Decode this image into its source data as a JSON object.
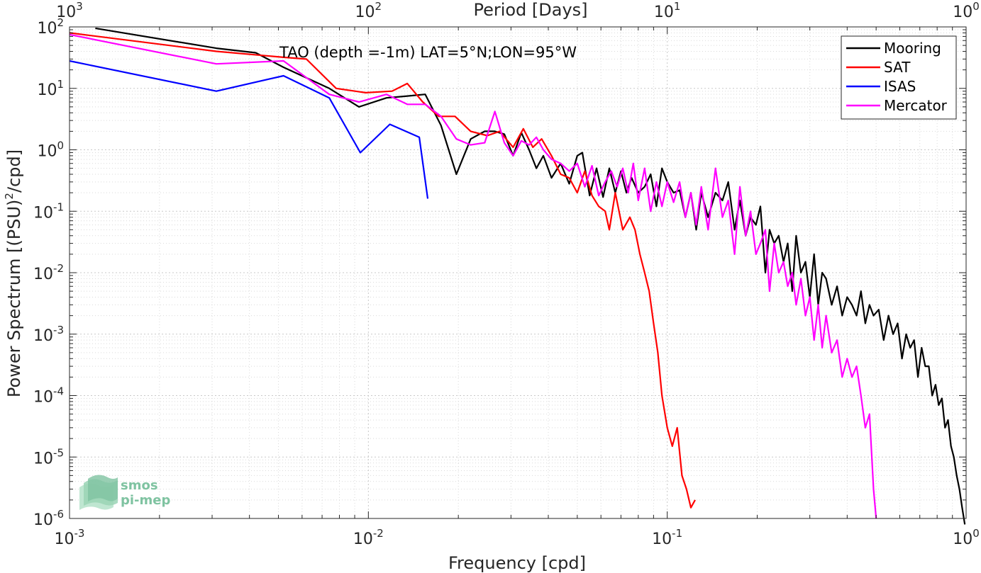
{
  "chart_data": {
    "type": "line",
    "title": "TAO (depth =-1m) LAT=5°N;LON=95°W",
    "xlabel": "Frequency [cpd]",
    "ylabel": "Power Spectrum [(PSU)²/cpd]",
    "ylabel_parts": {
      "before": "Power Spectrum [(PSU)",
      "sup": "2",
      "after": "/cpd]"
    },
    "top_xlabel": "Period [Days]",
    "xscale": "log",
    "yscale": "log",
    "xlim": [
      0.001,
      1
    ],
    "ylim": [
      1e-06,
      100
    ],
    "grid": true,
    "minor_grid": true,
    "legend_position": "top-right",
    "x_ticks": [
      {
        "value": 0.001,
        "base": "10",
        "exp": "-3"
      },
      {
        "value": 0.01,
        "base": "10",
        "exp": "-2"
      },
      {
        "value": 0.1,
        "base": "10",
        "exp": "-1"
      },
      {
        "value": 1,
        "base": "10",
        "exp": "0"
      }
    ],
    "top_x_ticks": [
      {
        "value": 0.001,
        "base": "10",
        "exp": "3"
      },
      {
        "value": 0.01,
        "base": "10",
        "exp": "2"
      },
      {
        "value": 0.1,
        "base": "10",
        "exp": "1"
      },
      {
        "value": 1,
        "base": "10",
        "exp": "0"
      }
    ],
    "y_ticks": [
      {
        "value": 100,
        "base": "10",
        "exp": "2"
      },
      {
        "value": 10,
        "base": "10",
        "exp": "1"
      },
      {
        "value": 1,
        "base": "10",
        "exp": "0"
      },
      {
        "value": 0.1,
        "base": "10",
        "exp": "-1"
      },
      {
        "value": 0.01,
        "base": "10",
        "exp": "-2"
      },
      {
        "value": 0.001,
        "base": "10",
        "exp": "-3"
      },
      {
        "value": 0.0001,
        "base": "10",
        "exp": "-4"
      },
      {
        "value": 1e-05,
        "base": "10",
        "exp": "-5"
      },
      {
        "value": 1e-06,
        "base": "10",
        "exp": "-6"
      }
    ],
    "series": [
      {
        "name": "Mooring",
        "color": "#000000",
        "x": [
          0.00122,
          0.0031,
          0.0042,
          0.0052,
          0.0074,
          0.0093,
          0.0115,
          0.0135,
          0.0155,
          0.0175,
          0.0197,
          0.022,
          0.0245,
          0.0265,
          0.0285,
          0.0305,
          0.0325,
          0.0345,
          0.0365,
          0.0385,
          0.041,
          0.044,
          0.047,
          0.05,
          0.052,
          0.055,
          0.058,
          0.061,
          0.064,
          0.067,
          0.07,
          0.073,
          0.076,
          0.08,
          0.084,
          0.088,
          0.092,
          0.096,
          0.1,
          0.105,
          0.11,
          0.115,
          0.12,
          0.125,
          0.13,
          0.137,
          0.145,
          0.153,
          0.16,
          0.168,
          0.175,
          0.183,
          0.19,
          0.198,
          0.205,
          0.213,
          0.22,
          0.228,
          0.236,
          0.245,
          0.253,
          0.262,
          0.27,
          0.28,
          0.29,
          0.3,
          0.31,
          0.32,
          0.33,
          0.34,
          0.355,
          0.37,
          0.385,
          0.4,
          0.415,
          0.43,
          0.445,
          0.46,
          0.475,
          0.49,
          0.51,
          0.53,
          0.55,
          0.57,
          0.59,
          0.61,
          0.63,
          0.65,
          0.67,
          0.69,
          0.71,
          0.73,
          0.75,
          0.77,
          0.79,
          0.81,
          0.83,
          0.85,
          0.87,
          0.89,
          0.91,
          0.93,
          0.95,
          0.97,
          0.99
        ],
        "y": [
          95,
          45,
          38,
          22,
          10,
          5,
          7,
          7.5,
          8,
          2.5,
          0.4,
          1.5,
          2,
          2,
          1.8,
          0.8,
          1.9,
          1,
          0.5,
          0.8,
          0.35,
          0.6,
          0.28,
          0.8,
          0.9,
          0.18,
          0.5,
          0.17,
          0.5,
          0.2,
          0.45,
          0.2,
          0.35,
          0.2,
          0.25,
          0.4,
          0.12,
          0.5,
          0.3,
          0.2,
          0.22,
          0.08,
          0.2,
          0.05,
          0.2,
          0.08,
          0.2,
          0.15,
          0.3,
          0.05,
          0.15,
          0.04,
          0.08,
          0.06,
          0.12,
          0.01,
          0.05,
          0.03,
          0.04,
          0.015,
          0.03,
          0.005,
          0.04,
          0.01,
          0.015,
          0.004,
          0.02,
          0.003,
          0.01,
          0.008,
          0.003,
          0.006,
          0.002,
          0.004,
          0.003,
          0.002,
          0.005,
          0.0015,
          0.003,
          0.002,
          0.0025,
          0.0008,
          0.002,
          0.001,
          0.0015,
          0.0004,
          0.001,
          0.0006,
          0.0008,
          0.0002,
          0.0006,
          0.0003,
          0.0003,
          0.0001,
          0.00015,
          7e-05,
          9e-05,
          3e-05,
          4e-05,
          1.5e-05,
          1e-05,
          5e-06,
          3e-06,
          1.5e-06,
          8e-07
        ]
      },
      {
        "name": "SAT",
        "color": "#ff0000",
        "x": [
          0.001,
          0.0031,
          0.0052,
          0.0062,
          0.0078,
          0.0098,
          0.012,
          0.0135,
          0.0152,
          0.0172,
          0.0195,
          0.022,
          0.025,
          0.0275,
          0.0305,
          0.033,
          0.0355,
          0.038,
          0.041,
          0.044,
          0.047,
          0.05,
          0.053,
          0.056,
          0.059,
          0.062,
          0.064,
          0.067,
          0.071,
          0.075,
          0.078,
          0.081,
          0.084,
          0.087,
          0.09,
          0.093,
          0.096,
          0.1,
          0.104,
          0.108,
          0.112,
          0.116,
          0.12,
          0.124
        ],
        "y": [
          80,
          40,
          32,
          30,
          10,
          8.5,
          9,
          12,
          6,
          3.5,
          3.5,
          2,
          1.7,
          2,
          1.1,
          2.2,
          1.1,
          1.5,
          0.8,
          0.4,
          0.35,
          0.2,
          0.45,
          0.18,
          0.12,
          0.1,
          0.05,
          0.2,
          0.05,
          0.08,
          0.05,
          0.02,
          0.01,
          0.005,
          0.0015,
          0.0005,
          0.0001,
          3e-05,
          1.5e-05,
          3e-05,
          5e-06,
          3e-06,
          1.5e-06,
          2e-06
        ]
      },
      {
        "name": "ISAS",
        "color": "#0000ff",
        "x": [
          0.001,
          0.0031,
          0.0052,
          0.0074,
          0.0094,
          0.0118,
          0.0148,
          0.0158
        ],
        "y": [
          28,
          9,
          16,
          7,
          0.9,
          2.6,
          1.6,
          0.16
        ]
      },
      {
        "name": "Mercator",
        "color": "#ff00ff",
        "x": [
          0.001,
          0.0031,
          0.0052,
          0.0074,
          0.0093,
          0.0115,
          0.0135,
          0.0155,
          0.0175,
          0.0197,
          0.022,
          0.0245,
          0.0265,
          0.0285,
          0.0305,
          0.0325,
          0.0345,
          0.0365,
          0.0385,
          0.041,
          0.044,
          0.047,
          0.05,
          0.053,
          0.056,
          0.059,
          0.062,
          0.065,
          0.068,
          0.071,
          0.074,
          0.077,
          0.08,
          0.084,
          0.088,
          0.092,
          0.096,
          0.1,
          0.105,
          0.11,
          0.115,
          0.12,
          0.125,
          0.13,
          0.137,
          0.145,
          0.153,
          0.16,
          0.168,
          0.175,
          0.183,
          0.19,
          0.198,
          0.205,
          0.213,
          0.22,
          0.228,
          0.236,
          0.245,
          0.253,
          0.262,
          0.27,
          0.28,
          0.29,
          0.3,
          0.31,
          0.32,
          0.33,
          0.34,
          0.355,
          0.37,
          0.385,
          0.4,
          0.415,
          0.43,
          0.445,
          0.46,
          0.475,
          0.49,
          0.5
        ],
        "y": [
          75,
          25,
          28,
          8,
          6,
          8,
          5.5,
          5.5,
          3.5,
          1.5,
          1.2,
          1.3,
          4.2,
          1.3,
          0.8,
          1.4,
          1.2,
          1.6,
          1,
          0.7,
          0.6,
          0.45,
          0.6,
          0.25,
          0.55,
          0.18,
          0.3,
          0.45,
          0.25,
          0.5,
          0.2,
          0.6,
          0.15,
          0.5,
          0.1,
          0.3,
          0.12,
          0.3,
          0.14,
          0.3,
          0.08,
          0.2,
          0.06,
          0.25,
          0.05,
          0.5,
          0.08,
          0.15,
          0.02,
          0.25,
          0.04,
          0.1,
          0.02,
          0.03,
          0.05,
          0.005,
          0.03,
          0.01,
          0.015,
          0.006,
          0.01,
          0.003,
          0.008,
          0.002,
          0.004,
          0.0008,
          0.003,
          0.0006,
          0.002,
          0.0005,
          0.0008,
          0.0002,
          0.0004,
          0.0002,
          0.0003,
          0.0001,
          3e-05,
          5e-05,
          3e-06,
          1e-06
        ]
      }
    ]
  },
  "logo": {
    "line1": "smos",
    "line2": "pi-mep"
  }
}
